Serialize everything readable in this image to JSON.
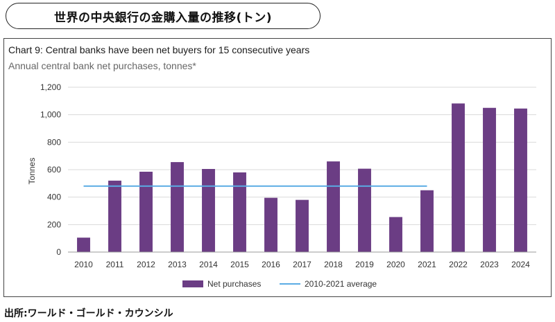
{
  "header": {
    "title": "世界の中央銀行の金購入量の推移(トン)"
  },
  "source": "出所:ワールド・ゴールド・カウンシル",
  "colors": {
    "bar": "#6b3d84",
    "average_line": "#5aace4",
    "grid": "#d9d9d9",
    "axis_text": "#333333"
  },
  "chart_data": {
    "type": "bar",
    "title": "Chart 9: Central banks have been net buyers for 15 consecutive years",
    "subtitle": "Annual central bank net purchases, tonnes*",
    "ylabel": "Tonnes",
    "xlabel": "",
    "ylim": [
      0,
      1200
    ],
    "yticks": [
      0,
      200,
      400,
      600,
      800,
      1000,
      1200
    ],
    "ytick_labels": [
      "0",
      "200",
      "400",
      "600",
      "800",
      "1,000",
      "1,200"
    ],
    "grid": true,
    "categories": [
      "2010",
      "2011",
      "2012",
      "2013",
      "2014",
      "2015",
      "2016",
      "2017",
      "2018",
      "2019",
      "2020",
      "2021",
      "2022",
      "2023",
      "2024"
    ],
    "series": [
      {
        "name": "Net purchases",
        "type": "bar",
        "values": [
          105,
          520,
          585,
          655,
          605,
          580,
          395,
          380,
          660,
          607,
          255,
          450,
          1082,
          1050,
          1045
        ]
      }
    ],
    "average": {
      "name": "2010-2021 average",
      "value": 480,
      "from": "2010",
      "to": "2021"
    },
    "legend": {
      "position": "bottom",
      "entries": [
        "Net purchases",
        "2010-2021 average"
      ]
    }
  }
}
